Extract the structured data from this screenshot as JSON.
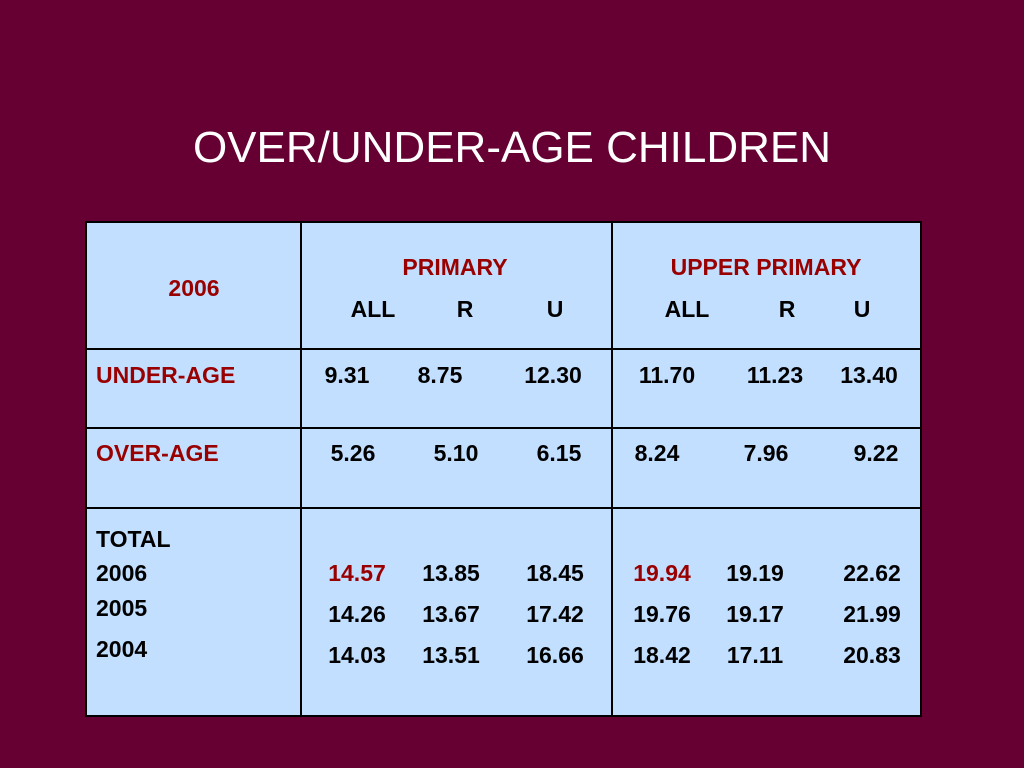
{
  "slide": {
    "title": "OVER/UNDER-AGE CHILDREN"
  },
  "colors": {
    "background": "#660033",
    "table_fill": "#c2dfff",
    "label_red": "#990000",
    "text": "#000000"
  },
  "table": {
    "corner_label": "2006",
    "groups": [
      {
        "name": "PRIMARY",
        "columns": [
          "ALL",
          "R",
          "U"
        ]
      },
      {
        "name": "UPPER PRIMARY",
        "columns": [
          "ALL",
          "R",
          "U"
        ]
      }
    ],
    "rows": {
      "under_age": {
        "label": "UNDER-AGE",
        "primary": [
          "9.31",
          "8.75",
          "12.30"
        ],
        "upper_primary": [
          "11.70",
          "11.23",
          "13.40"
        ]
      },
      "over_age": {
        "label": "OVER-AGE",
        "primary": [
          "5.26",
          "5.10",
          "6.15"
        ],
        "upper_primary": [
          "8.24",
          "7.96",
          "9.22"
        ]
      },
      "total": {
        "label": "TOTAL",
        "years": [
          {
            "year": "2006",
            "primary": [
              "14.57",
              "13.85",
              "18.45"
            ],
            "upper_primary": [
              "19.94",
              "19.19",
              "22.62"
            ]
          },
          {
            "year": "2005",
            "primary": [
              "14.26",
              "13.67",
              "17.42"
            ],
            "upper_primary": [
              "19.76",
              "19.17",
              "21.99"
            ]
          },
          {
            "year": "2004",
            "primary": [
              "14.03",
              "13.51",
              "16.66"
            ],
            "upper_primary": [
              "18.42",
              "17.11",
              "20.83"
            ]
          }
        ]
      }
    }
  }
}
